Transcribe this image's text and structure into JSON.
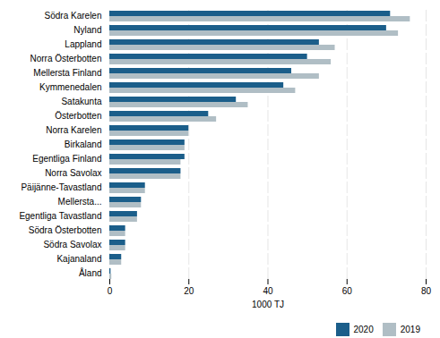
{
  "chart_data": {
    "type": "bar",
    "orientation": "horizontal",
    "categories": [
      "Södra Karelen",
      "Nyland",
      "Lappland",
      "Norra Österbotten",
      "Mellersta Finland",
      "Kymmenedalen",
      "Satakunta",
      "Österbotten",
      "Norra Karelen",
      "Birkaland",
      "Egentliga Finland",
      "Norra Savolax",
      "Päijänne-Tavastland",
      "Mellersta...",
      "Egentliga Tavastland",
      "Södra Österbotten",
      "Södra Savolax",
      "Kajanaland",
      "Åland"
    ],
    "series": [
      {
        "name": "2020",
        "color": "#1b5e8a",
        "values": [
          71,
          70,
          53,
          50,
          46,
          44,
          32,
          25,
          20,
          19,
          19,
          18,
          9,
          8,
          7,
          4,
          4,
          3,
          0.3
        ]
      },
      {
        "name": "2019",
        "color": "#b0bec5",
        "values": [
          76,
          73,
          57,
          56,
          53,
          47,
          35,
          27,
          20,
          19,
          18,
          18,
          9,
          8,
          7,
          4,
          4,
          3,
          0.5
        ]
      }
    ],
    "xlabel": "1000 TJ",
    "xlim": [
      0,
      80
    ],
    "xticks": [
      0,
      20,
      40,
      60,
      80
    ],
    "grid": true,
    "legend": "lower right"
  }
}
